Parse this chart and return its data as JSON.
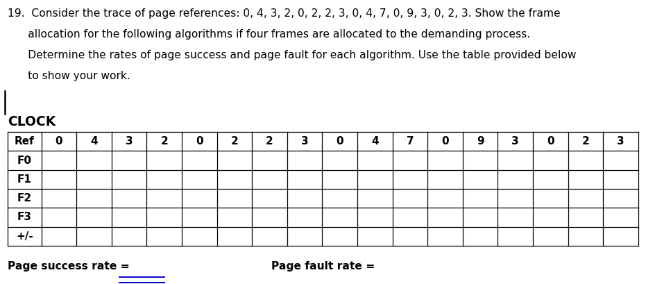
{
  "title_lines": [
    "19.  Consider the trace of page references: 0, 4, 3, 2, 0, 2, 2, 3, 0, 4, 7, 0, 9, 3, 0, 2, 3. Show the frame",
    "      allocation for the following algorithms if four frames are allocated to the demanding process.",
    "      Determine the rates of page success and page fault for each algorithm. Use the table provided below",
    "      to show your work."
  ],
  "section_label": "CLOCK",
  "row_labels": [
    "Ref",
    "F0",
    "F1",
    "F2",
    "F3",
    "+/-"
  ],
  "col_values": [
    "0",
    "4",
    "3",
    "2",
    "0",
    "2",
    "2",
    "3",
    "0",
    "4",
    "7",
    "0",
    "9",
    "3",
    "0",
    "2",
    "3"
  ],
  "footer_left": "Page success rate =",
  "footer_right": "Page fault rate =",
  "bg_color": "#ffffff",
  "text_color": "#000000",
  "table_line_color": "#000000",
  "font_size_title": 11.2,
  "font_size_table": 11.0,
  "font_size_section": 13.5,
  "font_size_footer": 11.2,
  "underline_color": "#0000cc"
}
